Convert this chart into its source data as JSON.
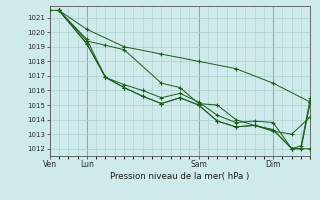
{
  "title": "Pression niveau de la mer( hPa )",
  "bg_color": "#ceeaea",
  "grid_color": "#aacece",
  "line_color": "#1a5c1a",
  "marker_color": "#1a5c1a",
  "ylim": [
    1011.5,
    1021.8
  ],
  "yticks": [
    1012,
    1013,
    1014,
    1015,
    1016,
    1017,
    1018,
    1019,
    1020,
    1021
  ],
  "xtick_labels": [
    "Ven",
    "Lun",
    "Sam",
    "Dim"
  ],
  "xtick_positions": [
    0,
    2,
    8,
    12
  ],
  "total_steps": 14,
  "series": [
    [
      [
        0,
        1021.5
      ],
      [
        0.5,
        1021.5
      ],
      [
        2,
        1020.2
      ],
      [
        4,
        1019.0
      ],
      [
        6,
        1018.5
      ],
      [
        8,
        1018.0
      ],
      [
        10,
        1017.5
      ],
      [
        12,
        1016.5
      ],
      [
        14,
        1015.2
      ]
    ],
    [
      [
        0.5,
        1021.5
      ],
      [
        2,
        1019.4
      ],
      [
        3,
        1019.1
      ],
      [
        4,
        1018.8
      ],
      [
        6,
        1016.5
      ],
      [
        7,
        1016.2
      ],
      [
        8,
        1015.1
      ],
      [
        9,
        1015.0
      ],
      [
        10,
        1014.0
      ],
      [
        11,
        1013.6
      ],
      [
        12,
        1013.2
      ],
      [
        13,
        1013.0
      ],
      [
        14,
        1014.2
      ]
    ],
    [
      [
        0.5,
        1021.5
      ],
      [
        2,
        1019.2
      ],
      [
        3,
        1016.9
      ],
      [
        4,
        1016.2
      ],
      [
        5,
        1015.6
      ],
      [
        6,
        1015.1
      ],
      [
        7,
        1015.5
      ],
      [
        8,
        1015.0
      ],
      [
        9,
        1013.9
      ],
      [
        10,
        1013.5
      ],
      [
        11,
        1013.6
      ],
      [
        12,
        1013.3
      ],
      [
        13,
        1012.0
      ],
      [
        14,
        1012.0
      ]
    ],
    [
      [
        0.5,
        1021.5
      ],
      [
        2,
        1019.2
      ],
      [
        3,
        1016.9
      ],
      [
        4,
        1016.2
      ],
      [
        5,
        1015.6
      ],
      [
        6,
        1015.1
      ],
      [
        7,
        1015.5
      ],
      [
        8,
        1015.0
      ],
      [
        9,
        1013.9
      ],
      [
        10,
        1013.5
      ],
      [
        11,
        1013.6
      ],
      [
        12,
        1013.3
      ],
      [
        13,
        1012.0
      ],
      [
        13.5,
        1012.0
      ],
      [
        14,
        1015.2
      ]
    ],
    [
      [
        0.5,
        1021.5
      ],
      [
        2,
        1019.5
      ],
      [
        3,
        1016.9
      ],
      [
        4,
        1016.4
      ],
      [
        5,
        1016.0
      ],
      [
        6,
        1015.5
      ],
      [
        7,
        1015.8
      ],
      [
        8,
        1015.2
      ],
      [
        9,
        1014.3
      ],
      [
        10,
        1013.8
      ],
      [
        11,
        1013.9
      ],
      [
        12,
        1013.8
      ],
      [
        13,
        1012.0
      ],
      [
        13.5,
        1012.2
      ],
      [
        14,
        1015.5
      ]
    ]
  ]
}
